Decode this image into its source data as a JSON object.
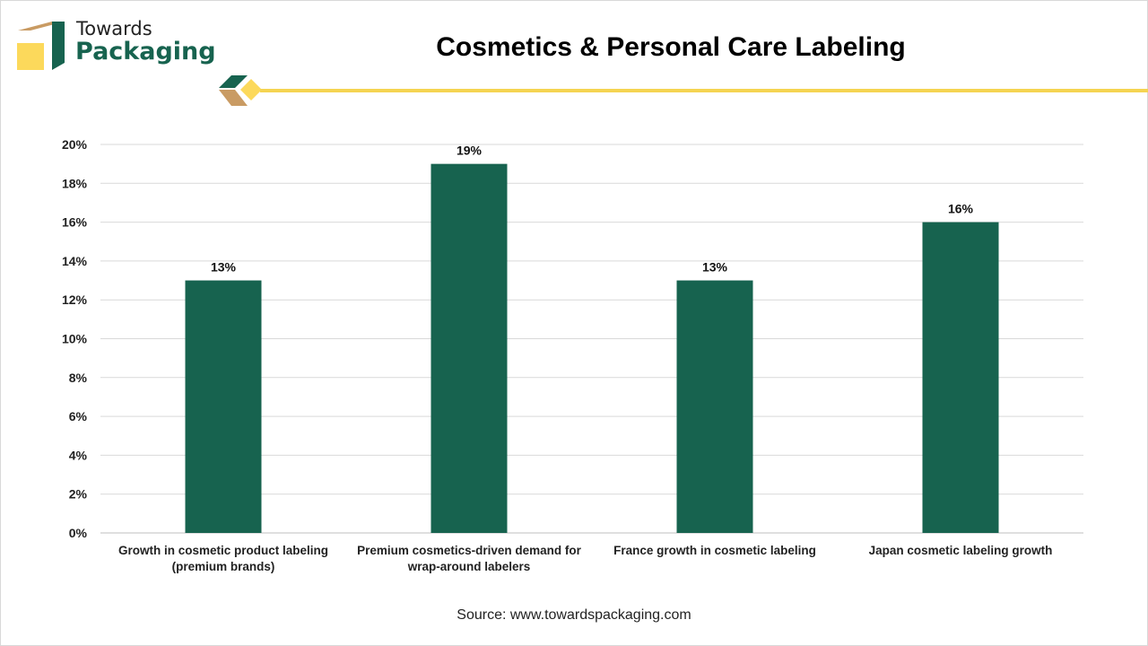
{
  "brand": {
    "line1": "Towards",
    "line2": "Packaging"
  },
  "source": "Source: www.towardspackaging.com",
  "colors": {
    "bar": "#17634f",
    "accent": "#f5d451",
    "tan": "#c99b63"
  },
  "chart_data": {
    "type": "bar",
    "title": "Cosmetics & Personal Care Labeling",
    "xlabel": "",
    "ylabel": "",
    "categories": [
      "Growth in cosmetic product labeling (premium brands)",
      "Premium cosmetics-driven demand for wrap-around labelers",
      "France growth in cosmetic labeling",
      "Japan cosmetic labeling growth"
    ],
    "values": [
      13,
      19,
      13,
      16
    ],
    "data_labels": [
      "13%",
      "19%",
      "13%",
      "16%"
    ],
    "ylim": [
      0,
      20
    ],
    "yticks": [
      "0%",
      "2%",
      "4%",
      "6%",
      "8%",
      "10%",
      "12%",
      "14%",
      "16%",
      "18%",
      "20%"
    ],
    "grid": true,
    "legend": "none"
  }
}
